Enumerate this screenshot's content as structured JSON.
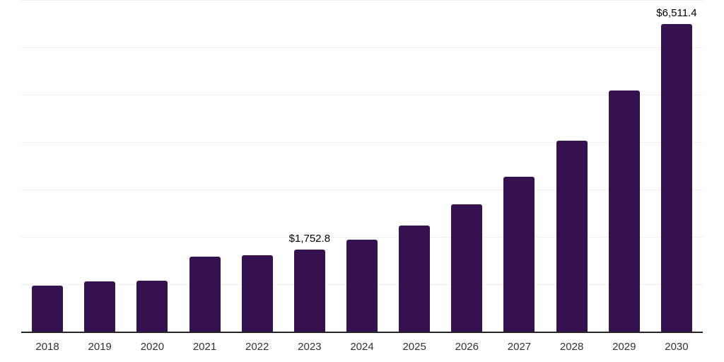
{
  "chart_data": {
    "type": "bar",
    "title": "",
    "xlabel": "",
    "ylabel": "",
    "categories": [
      "2018",
      "2019",
      "2020",
      "2021",
      "2022",
      "2023",
      "2024",
      "2025",
      "2026",
      "2027",
      "2028",
      "2029",
      "2030"
    ],
    "values": [
      985,
      1075,
      1090,
      1595,
      1625,
      1752.8,
      1950,
      2260,
      2700,
      3280,
      4050,
      5100,
      6511.4
    ],
    "point_labels": [
      "",
      "",
      "",
      "",
      "",
      "$1,752.8",
      "",
      "",
      "",
      "",
      "",
      "",
      "$6,511.4"
    ],
    "ylim": [
      0,
      7000
    ],
    "grid_interval": 1000,
    "grid": true,
    "legend": false,
    "colors": {
      "bar": "#35114F",
      "axis_line": "#262626",
      "gridline": "#F0F0F2",
      "tick_label": "#333333",
      "data_label": "#000000",
      "background": "#FFFFFF"
    }
  }
}
